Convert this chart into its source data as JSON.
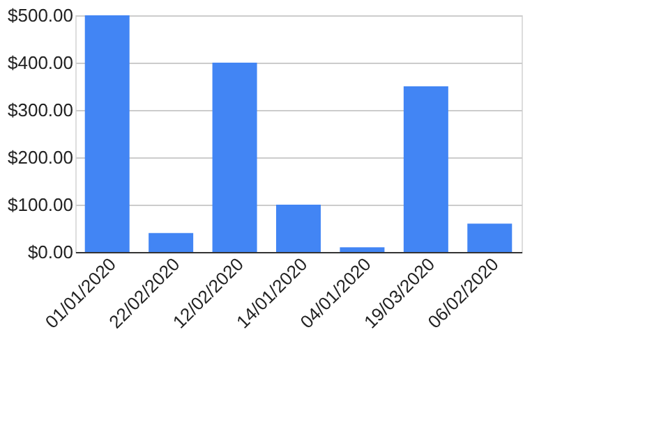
{
  "chart_data": {
    "type": "bar",
    "categories": [
      "01/01/2020",
      "22/02/2020",
      "12/02/2020",
      "14/01/2020",
      "04/01/2020",
      "19/03/2020",
      "06/02/2020"
    ],
    "values": [
      500,
      40,
      400,
      100,
      10,
      350,
      60
    ],
    "color": "#4285f4",
    "ylim": [
      0,
      500
    ],
    "yticks": [
      {
        "value": 0,
        "label": "$0.00"
      },
      {
        "value": 100,
        "label": "$100.00"
      },
      {
        "value": 200,
        "label": "$200.00"
      },
      {
        "value": 300,
        "label": "$300.00"
      },
      {
        "value": 400,
        "label": "$400.00"
      },
      {
        "value": 500,
        "label": "$500.00"
      }
    ],
    "grid": "y"
  }
}
